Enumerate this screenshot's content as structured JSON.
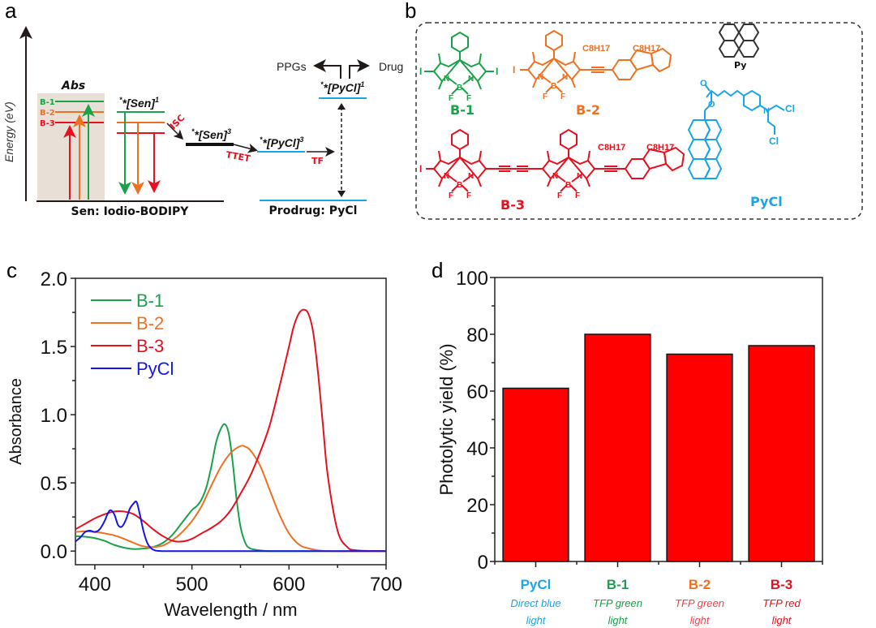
{
  "panels": {
    "a": "a",
    "b": "b",
    "c": "c",
    "d": "d"
  },
  "colors": {
    "green": "#1aa14a",
    "orange": "#f07022",
    "red": "#e8101e",
    "cyan": "#1aa6e6",
    "blue": "#1414ee",
    "bar_fill": "#ff0000",
    "abs_box": "#e8e0d6"
  },
  "diagram": {
    "energy_axis_label": "Energy (eV)",
    "abs_label": "Abs",
    "levels": [
      "B-1",
      "B-2",
      "B-3"
    ],
    "sen1_label": "*[Sen]",
    "sen1_sup": "1",
    "sen3_label": "*[Sen]",
    "sen3_sup": "3",
    "pycl3_label": "*[PyCl]",
    "pycl3_sup": "3",
    "pycl1_label": "*[PyCl]",
    "pycl1_sup": "1",
    "isc": "ISC",
    "ttet": "TTET",
    "tf": "TF",
    "ppgs": "PPGs",
    "drug": "Drug",
    "sen_ground": "Sen: Iodio-BODIPY",
    "prodrug_ground": "Prodrug: PyCl"
  },
  "structures": {
    "b1": "B-1",
    "b2": "B-2",
    "b3": "B-3",
    "py": "Py",
    "pycl": "PyCl",
    "c8h17": "C8H17",
    "atoms": {
      "I": "I",
      "N": "N",
      "B": "B",
      "F": "F",
      "O": "O",
      "Cl": "Cl"
    }
  },
  "chart_data": [
    {
      "type": "line",
      "panel": "c",
      "title": "",
      "xlabel": "Wavelength / nm",
      "ylabel": "Absorbance",
      "xlim": [
        380,
        700
      ],
      "ylim": [
        -0.1,
        2.0
      ],
      "xticks": [
        400,
        500,
        600,
        700
      ],
      "xtick_labels": [
        "400",
        "500",
        "600",
        "700"
      ],
      "yticks": [
        0.0,
        0.5,
        1.0,
        1.5,
        2.0
      ],
      "ytick_labels": [
        "0.0",
        "0.5",
        "1.0",
        "1.5",
        "2.0"
      ],
      "grid": false,
      "legend_position": "top-left",
      "series": [
        {
          "name": "B-1",
          "color": "#1aa14a",
          "x": [
            380,
            390,
            400,
            410,
            420,
            430,
            440,
            450,
            460,
            470,
            480,
            490,
            500,
            505,
            510,
            515,
            520,
            525,
            530,
            534,
            538,
            542,
            546,
            550,
            555,
            560,
            570,
            580,
            600,
            700
          ],
          "y": [
            0.11,
            0.105,
            0.095,
            0.075,
            0.045,
            0.025,
            0.015,
            0.018,
            0.03,
            0.06,
            0.12,
            0.21,
            0.3,
            0.33,
            0.38,
            0.47,
            0.62,
            0.8,
            0.9,
            0.93,
            0.86,
            0.65,
            0.38,
            0.18,
            0.06,
            0.02,
            0.005,
            0.0,
            0.0,
            0.0
          ]
        },
        {
          "name": "B-2",
          "color": "#f07022",
          "x": [
            380,
            390,
            400,
            410,
            420,
            430,
            440,
            450,
            460,
            470,
            480,
            490,
            500,
            510,
            520,
            530,
            540,
            550,
            555,
            560,
            570,
            580,
            590,
            600,
            610,
            620,
            640,
            700
          ],
          "y": [
            0.14,
            0.145,
            0.14,
            0.13,
            0.115,
            0.09,
            0.06,
            0.035,
            0.03,
            0.04,
            0.08,
            0.14,
            0.22,
            0.33,
            0.48,
            0.62,
            0.72,
            0.77,
            0.765,
            0.74,
            0.63,
            0.45,
            0.27,
            0.13,
            0.05,
            0.02,
            0.0,
            0.0
          ]
        },
        {
          "name": "B-3",
          "color": "#e8101e",
          "x": [
            380,
            390,
            400,
            410,
            420,
            430,
            440,
            450,
            460,
            470,
            480,
            490,
            500,
            510,
            520,
            530,
            540,
            550,
            560,
            570,
            580,
            590,
            600,
            605,
            610,
            615,
            620,
            625,
            630,
            635,
            640,
            650,
            660,
            670,
            700
          ],
          "y": [
            0.16,
            0.2,
            0.24,
            0.27,
            0.29,
            0.29,
            0.27,
            0.22,
            0.16,
            0.11,
            0.075,
            0.07,
            0.09,
            0.13,
            0.17,
            0.22,
            0.3,
            0.42,
            0.55,
            0.72,
            0.92,
            1.2,
            1.5,
            1.65,
            1.74,
            1.77,
            1.74,
            1.6,
            1.3,
            0.92,
            0.55,
            0.15,
            0.03,
            0.005,
            0.0
          ]
        },
        {
          "name": "PyCl",
          "color": "#1414ee",
          "x": [
            380,
            385,
            390,
            395,
            400,
            405,
            410,
            413,
            416,
            420,
            424,
            428,
            432,
            436,
            440,
            443,
            446,
            450,
            454,
            458,
            462,
            470,
            500,
            700
          ],
          "y": [
            0.07,
            0.1,
            0.14,
            0.15,
            0.14,
            0.16,
            0.22,
            0.27,
            0.3,
            0.27,
            0.19,
            0.18,
            0.23,
            0.31,
            0.35,
            0.36,
            0.28,
            0.15,
            0.06,
            0.02,
            0.005,
            0.0,
            0.0,
            0.0
          ]
        }
      ]
    },
    {
      "type": "bar",
      "panel": "d",
      "title": "",
      "xlabel": "",
      "ylabel": "Photolytic yield (%)",
      "ylim": [
        0,
        100
      ],
      "yticks": [
        0,
        20,
        40,
        60,
        80,
        100
      ],
      "ytick_labels": [
        "0",
        "20",
        "40",
        "60",
        "80",
        "100"
      ],
      "grid": false,
      "categories": [
        "PyCl",
        "B-1",
        "B-2",
        "B-3"
      ],
      "category_sublabels": [
        [
          "Direct blue",
          "light"
        ],
        [
          "TFP green",
          "light"
        ],
        [
          "TFP green",
          "light"
        ],
        [
          "TFP red",
          "light"
        ]
      ],
      "category_colors": [
        "#1aa6e6",
        "#1aa14a",
        "#f07022",
        "#e8101e"
      ],
      "sublabel_colors": [
        "#1aa6e6",
        "#1aa14a",
        "#f0424a",
        "#e8101e"
      ],
      "values": [
        61,
        80,
        73,
        76
      ]
    }
  ]
}
